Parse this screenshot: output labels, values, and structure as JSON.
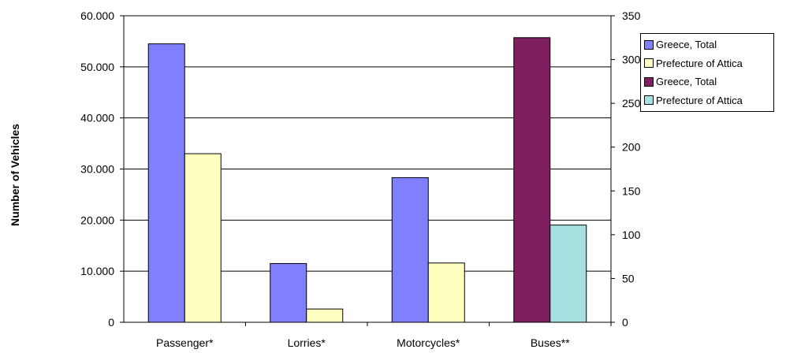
{
  "chart_data": {
    "type": "bar",
    "categories": [
      "Passenger*",
      "Lorries*",
      "Motorcycles*",
      "Buses**"
    ],
    "ylabel": "Number of Vehicles",
    "left_axis": {
      "ylim": [
        0,
        60000
      ],
      "ticks": [
        0,
        10000,
        20000,
        30000,
        40000,
        50000,
        60000
      ],
      "tick_labels": [
        "0",
        "10.000",
        "20.000",
        "30.000",
        "40.000",
        "50.000",
        "60.000"
      ]
    },
    "right_axis": {
      "ylim": [
        0,
        350
      ],
      "ticks": [
        0,
        50,
        100,
        150,
        200,
        250,
        300,
        350
      ],
      "tick_labels": [
        "0",
        "50",
        "100",
        "150",
        "200",
        "250",
        "300",
        "350"
      ]
    },
    "grid": true,
    "legend_position": "right",
    "series": [
      {
        "name": "Greece, Total",
        "axis": "left",
        "color": "#8080ff",
        "values": [
          54500,
          11500,
          28300,
          null
        ]
      },
      {
        "name": "Prefecture of Attica",
        "axis": "left",
        "color": "#ffffc0",
        "values": [
          33000,
          2600,
          11600,
          null
        ]
      },
      {
        "name": "Greece, Total",
        "axis": "right",
        "color": "#7f1f5f",
        "values": [
          null,
          null,
          null,
          325
        ]
      },
      {
        "name": "Prefecture of Attica",
        "axis": "right",
        "color": "#a6e0e0",
        "values": [
          null,
          null,
          null,
          111
        ]
      }
    ]
  }
}
